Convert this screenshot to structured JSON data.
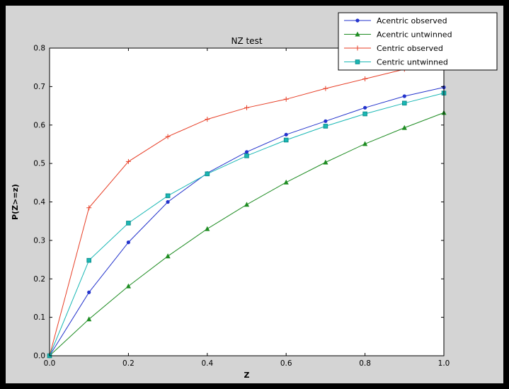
{
  "window": {
    "background": "#000000",
    "figure_background": "#d4d4d4",
    "plot_background": "#ffffff",
    "frame_color": "#000000"
  },
  "chart_data": {
    "type": "line",
    "title": "NZ test",
    "xlabel": "Z",
    "ylabel": "P(Z>=z)",
    "xlim": [
      0.0,
      1.0
    ],
    "ylim": [
      0.0,
      0.8
    ],
    "xticks": [
      0.0,
      0.2,
      0.4,
      0.6,
      0.8,
      1.0
    ],
    "yticks": [
      0.0,
      0.1,
      0.2,
      0.3,
      0.4,
      0.5,
      0.6,
      0.7,
      0.8
    ],
    "grid": false,
    "legend_position": "upper right",
    "x": [
      0.0,
      0.1,
      0.2,
      0.3,
      0.4,
      0.5,
      0.6,
      0.7,
      0.8,
      0.9,
      1.0
    ],
    "series": [
      {
        "name": "Acentric observed",
        "color": "#2333cc",
        "marker": "circle",
        "values": [
          0.0,
          0.165,
          0.295,
          0.4,
          0.475,
          0.53,
          0.575,
          0.61,
          0.645,
          0.675,
          0.698
        ]
      },
      {
        "name": "Acentric untwinned",
        "color": "#1e8c22",
        "marker": "triangle",
        "values": [
          0.0,
          0.095,
          0.181,
          0.259,
          0.33,
          0.393,
          0.451,
          0.503,
          0.551,
          0.593,
          0.632
        ]
      },
      {
        "name": "Centric observed",
        "color": "#e73e26",
        "marker": "plus",
        "values": [
          0.0,
          0.385,
          0.505,
          0.57,
          0.615,
          0.645,
          0.667,
          0.695,
          0.72,
          0.745,
          0.762
        ]
      },
      {
        "name": "Centric untwinned",
        "color": "#19b7b4",
        "marker": "square",
        "marker_edge": "#0f8f8d",
        "values": [
          0.0,
          0.248,
          0.345,
          0.416,
          0.473,
          0.52,
          0.561,
          0.597,
          0.629,
          0.657,
          0.683
        ]
      }
    ]
  }
}
